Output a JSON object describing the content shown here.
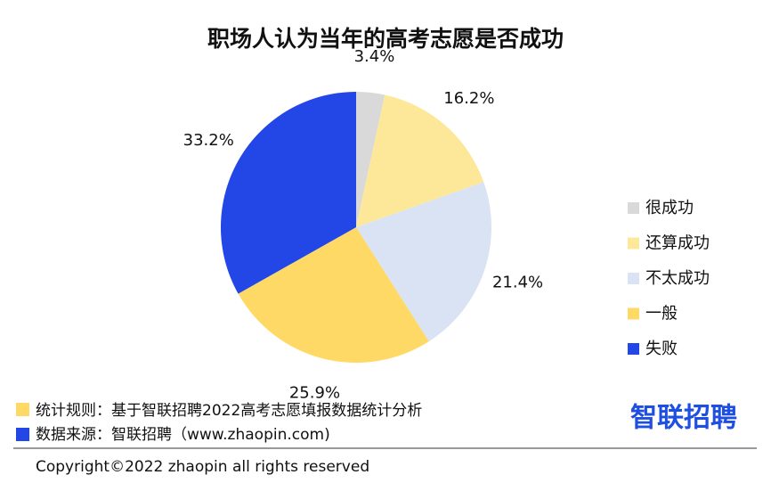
{
  "chart_data": {
    "type": "pie",
    "title": "职场人认为当年的高考志愿是否成功",
    "categories": [
      "很成功",
      "还算成功",
      "不太成功",
      "一般",
      "失败"
    ],
    "values": [
      3.4,
      16.2,
      21.4,
      25.9,
      33.2
    ],
    "value_labels": [
      "3.4%",
      "16.2%",
      "21.4%",
      "25.9%",
      "33.2%"
    ],
    "colors": [
      "#d9d9d9",
      "#fde89a",
      "#dae3f3",
      "#ffd966",
      "#2347e6"
    ],
    "legend": "right"
  },
  "notes": [
    "统计规则：基于智联招聘2022高考志愿填报数据统计分析",
    "数据来源：智联招聘（www.zhaopin.com)"
  ],
  "logo": "智联招聘",
  "copyright": "Copyright©2022 zhaopin all rights reserved"
}
